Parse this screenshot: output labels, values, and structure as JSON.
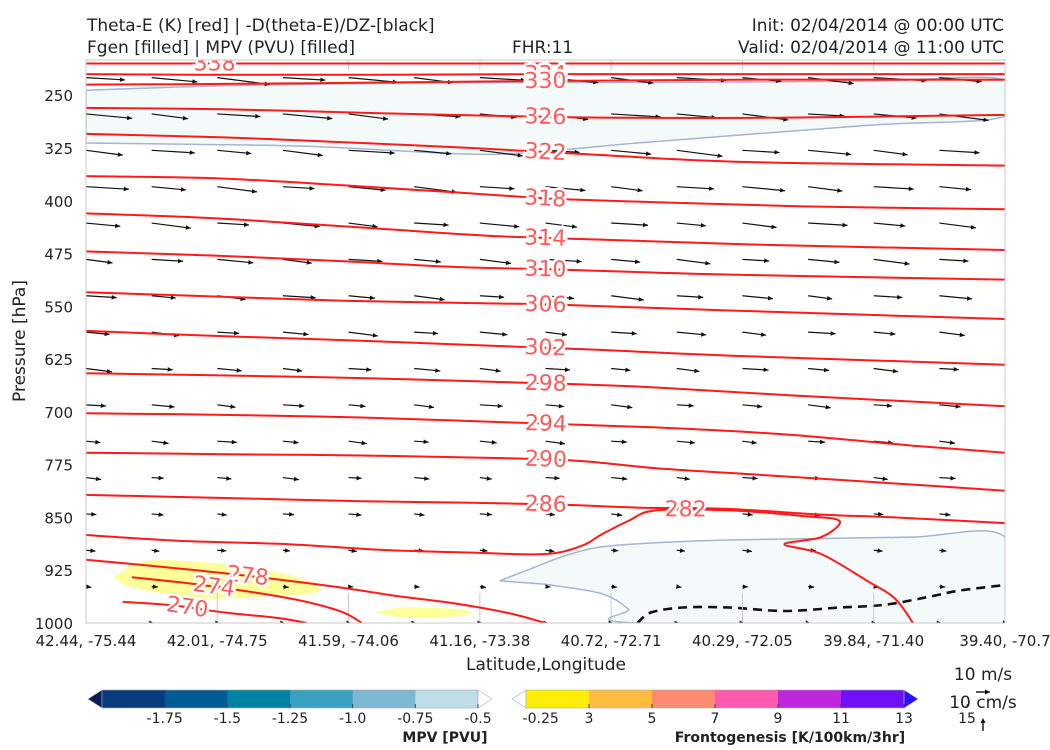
{
  "header": {
    "title_line1": "Theta-E (K) [red] | -D(theta-E)/DZ-[black]",
    "title_line2": "Fgen [filled] | MPV (PVU) [filled]",
    "fhr": "FHR:11",
    "init": "Init: 02/04/2014 @ 00:00 UTC",
    "valid": "Valid: 02/04/2014 @ 11:00 UTC"
  },
  "colors": {
    "theta_e": "#ff1a1a",
    "theta_e_label": "#ff5a5a",
    "mpv_light": "#f4fafa",
    "mpv_edge": "#a4b4d4",
    "fgen_low": "#ffff9a",
    "stability": "#111111"
  },
  "chart_data": {
    "type": "cross-section",
    "xlabel": "Latitude,Longitude",
    "ylabel": "Pressure [hPa]",
    "y_scale": "pressure",
    "ylim": [
      1000,
      200
    ],
    "x_ticks": [
      "42.44, -75.44",
      "42.01, -74.75",
      "41.59, -74.06",
      "41.16, -73.38",
      "40.72, -72.71",
      "40.29, -72.05",
      "39.84, -71.40",
      "39.40, -70.7"
    ],
    "y_ticks": [
      250,
      325,
      400,
      475,
      550,
      625,
      700,
      775,
      850,
      925,
      1000
    ],
    "theta_e_contours": [
      {
        "value": 338,
        "label": "338",
        "pts": [
          [
            0,
            205
          ],
          [
            80,
            205
          ],
          [
            280,
            205
          ],
          [
            520,
            205
          ],
          [
            1000,
            205
          ]
        ]
      },
      {
        "value": 334,
        "label": "334",
        "pts": [
          [
            0,
            220
          ],
          [
            120,
            221
          ],
          [
            300,
            221
          ],
          [
            520,
            220
          ],
          [
            750,
            220
          ],
          [
            1000,
            220
          ]
        ]
      },
      {
        "value": 330,
        "label": "330",
        "pts": [
          [
            0,
            235
          ],
          [
            150,
            234
          ],
          [
            320,
            232
          ],
          [
            480,
            230
          ],
          [
            700,
            228
          ],
          [
            1000,
            228
          ]
        ]
      },
      {
        "value": 326,
        "label": "326",
        "pts": [
          [
            0,
            268
          ],
          [
            150,
            270
          ],
          [
            300,
            275
          ],
          [
            470,
            280
          ],
          [
            580,
            282
          ],
          [
            750,
            282
          ],
          [
            1000,
            278
          ]
        ]
      },
      {
        "value": 322,
        "label": "322",
        "pts": [
          [
            0,
            305
          ],
          [
            150,
            310
          ],
          [
            300,
            318
          ],
          [
            420,
            325
          ],
          [
            560,
            335
          ],
          [
            720,
            345
          ],
          [
            1000,
            350
          ]
        ]
      },
      {
        "value": 318,
        "label": "318",
        "pts": [
          [
            0,
            365
          ],
          [
            140,
            368
          ],
          [
            280,
            378
          ],
          [
            400,
            388
          ],
          [
            480,
            395
          ],
          [
            520,
            398
          ],
          [
            620,
            402
          ],
          [
            780,
            408
          ],
          [
            1000,
            412
          ]
        ]
      },
      {
        "value": 314,
        "label": "314",
        "pts": [
          [
            0,
            418
          ],
          [
            140,
            425
          ],
          [
            300,
            438
          ],
          [
            440,
            450
          ],
          [
            580,
            456
          ],
          [
            720,
            462
          ],
          [
            1000,
            470
          ]
        ]
      },
      {
        "value": 310,
        "label": "310",
        "pts": [
          [
            0,
            472
          ],
          [
            140,
            478
          ],
          [
            280,
            486
          ],
          [
            400,
            494
          ],
          [
            520,
            498
          ],
          [
            700,
            505
          ],
          [
            1000,
            512
          ]
        ]
      },
      {
        "value": 306,
        "label": "306",
        "pts": [
          [
            0,
            530
          ],
          [
            140,
            536
          ],
          [
            280,
            542
          ],
          [
            400,
            545
          ],
          [
            520,
            548
          ],
          [
            700,
            556
          ],
          [
            1000,
            568
          ]
        ]
      },
      {
        "value": 302,
        "label": "302",
        "pts": [
          [
            0,
            585
          ],
          [
            140,
            592
          ],
          [
            280,
            598
          ],
          [
            420,
            605
          ],
          [
            560,
            612
          ],
          [
            700,
            620
          ],
          [
            1000,
            633
          ]
        ]
      },
      {
        "value": 298,
        "label": "298",
        "pts": [
          [
            0,
            645
          ],
          [
            140,
            648
          ],
          [
            300,
            652
          ],
          [
            460,
            658
          ],
          [
            600,
            664
          ],
          [
            760,
            676
          ],
          [
            1000,
            692
          ]
        ]
      },
      {
        "value": 294,
        "label": "294",
        "pts": [
          [
            0,
            702
          ],
          [
            140,
            704
          ],
          [
            300,
            708
          ],
          [
            460,
            715
          ],
          [
            620,
            722
          ],
          [
            760,
            732
          ],
          [
            900,
            748
          ],
          [
            1000,
            758
          ]
        ]
      },
      {
        "value": 290,
        "label": "290",
        "pts": [
          [
            0,
            758
          ],
          [
            140,
            760
          ],
          [
            300,
            762
          ],
          [
            460,
            766
          ],
          [
            540,
            770
          ],
          [
            620,
            780
          ],
          [
            740,
            790
          ],
          [
            860,
            800
          ],
          [
            1000,
            812
          ]
        ]
      },
      {
        "value": 286,
        "label": "286",
        "pts": [
          [
            0,
            818
          ],
          [
            140,
            822
          ],
          [
            300,
            827
          ],
          [
            420,
            829
          ],
          [
            520,
            832
          ],
          [
            600,
            836
          ],
          [
            700,
            838
          ],
          [
            800,
            846
          ],
          [
            880,
            850
          ],
          [
            1000,
            858
          ]
        ]
      },
      {
        "value": 282,
        "label": "282",
        "pts": [
          [
            0,
            875
          ],
          [
            100,
            883
          ],
          [
            220,
            888
          ],
          [
            320,
            896
          ],
          [
            420,
            900
          ],
          [
            500,
            902
          ],
          [
            540,
            890
          ],
          [
            560,
            875
          ],
          [
            590,
            855
          ],
          [
            620,
            840
          ],
          [
            700,
            840
          ],
          [
            780,
            848
          ],
          [
            820,
            855
          ],
          [
            800,
            878
          ],
          [
            760,
            888
          ],
          [
            800,
            902
          ],
          [
            850,
            940
          ],
          [
            880,
            965
          ],
          [
            900,
            1000
          ]
        ]
      },
      {
        "value": 278,
        "label": "278",
        "pts": [
          [
            0,
            910
          ],
          [
            120,
            925
          ],
          [
            220,
            940
          ],
          [
            290,
            952
          ],
          [
            340,
            962
          ],
          [
            400,
            972
          ],
          [
            460,
            986
          ],
          [
            500,
            1000
          ]
        ]
      },
      {
        "value": 274,
        "label": "274",
        "pts": [
          [
            50,
            935
          ],
          [
            120,
            945
          ],
          [
            190,
            958
          ],
          [
            240,
            970
          ],
          [
            280,
            985
          ],
          [
            300,
            1000
          ]
        ]
      },
      {
        "value": 270,
        "label": "270",
        "pts": [
          [
            40,
            970
          ],
          [
            95,
            975
          ],
          [
            150,
            985
          ],
          [
            210,
            993
          ],
          [
            240,
            1000
          ]
        ]
      }
    ],
    "mpv_fill": [
      {
        "value_pvu": -0.25,
        "region": "upper-troposphere",
        "pts": [
          [
            0,
            243
          ],
          [
            170,
            236
          ],
          [
            400,
            232
          ],
          [
            600,
            232
          ],
          [
            850,
            230
          ],
          [
            1000,
            228
          ],
          [
            1000,
            280
          ],
          [
            850,
            293
          ],
          [
            600,
            318
          ],
          [
            480,
            332
          ],
          [
            400,
            333
          ],
          [
            250,
            323
          ],
          [
            120,
            320
          ],
          [
            0,
            318
          ]
        ]
      },
      {
        "value_pvu": -0.25,
        "region": "lower-right",
        "pts": [
          [
            450,
            940
          ],
          [
            480,
            925
          ],
          [
            520,
            905
          ],
          [
            560,
            892
          ],
          [
            620,
            886
          ],
          [
            700,
            882
          ],
          [
            800,
            880
          ],
          [
            900,
            878
          ],
          [
            1000,
            878
          ],
          [
            1000,
            1000
          ],
          [
            600,
            1000
          ],
          [
            590,
            980
          ],
          [
            560,
            958
          ],
          [
            500,
            945
          ]
        ]
      }
    ],
    "fgen_fill": [
      {
        "value": 3,
        "region": "lower-left",
        "pts": [
          [
            30,
            935
          ],
          [
            60,
            913
          ],
          [
            110,
            912
          ],
          [
            170,
            920
          ],
          [
            230,
            935
          ],
          [
            255,
            955
          ],
          [
            200,
            962
          ],
          [
            130,
            965
          ],
          [
            70,
            955
          ],
          [
            40,
            945
          ]
        ]
      },
      {
        "value": 3,
        "region": "lower-center",
        "pts": [
          [
            315,
            985
          ],
          [
            345,
            978
          ],
          [
            400,
            980
          ],
          [
            420,
            985
          ],
          [
            395,
            992
          ],
          [
            340,
            992
          ]
        ]
      }
    ],
    "stability_contour": {
      "style": "dashed",
      "pts": [
        [
          600,
          1000
        ],
        [
          615,
          985
        ],
        [
          650,
          978
        ],
        [
          700,
          978
        ],
        [
          760,
          983
        ],
        [
          820,
          978
        ],
        [
          870,
          974
        ],
        [
          920,
          962
        ],
        [
          950,
          954
        ],
        [
          1000,
          946
        ]
      ]
    },
    "wind_vectors": {
      "rows": 16,
      "cols": 15,
      "direction": "eastward",
      "note": "speed decreases toward surface"
    },
    "vector_reference": {
      "horizontal": "10 m/s",
      "vertical": "10 cm/s"
    },
    "colorbars": [
      {
        "name": "MPV [PVU]",
        "ticks": [
          "-1.75",
          "-1.5",
          "-1.25",
          "-1.0",
          "-0.75",
          "-0.5",
          "-0.25"
        ],
        "colors": [
          "#081d58",
          "#083c7d",
          "#005a94",
          "#0082a2",
          "#3aa0c2",
          "#7cb8d2",
          "#bedde8",
          "#ffffff"
        ]
      },
      {
        "name": "Frontogenesis [K/100km/3hr]",
        "ticks": [
          "3",
          "5",
          "7",
          "9",
          "11",
          "13",
          "15"
        ],
        "colors": [
          "#ffffff",
          "#ffee08",
          "#ffbd40",
          "#ff8a72",
          "#ff5ab0",
          "#c026e0",
          "#7010f8",
          "#2a10f8"
        ]
      }
    ]
  }
}
